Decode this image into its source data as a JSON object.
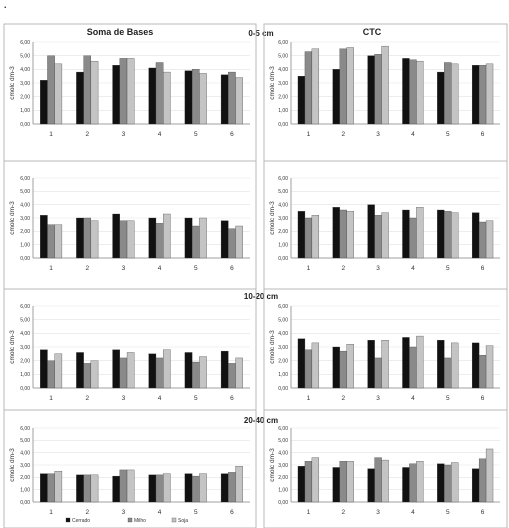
{
  "figure": {
    "col_titles": [
      "Soma de Bases",
      "CTC"
    ],
    "depth_labels": [
      "0-5 cm",
      "",
      "10-20 cm",
      "20-40 cm"
    ],
    "ylabel": "cmolc dm-3",
    "yticks": [
      "0,00",
      "1,00",
      "2,00",
      "3,00",
      "4,00",
      "5,00",
      "6,00"
    ],
    "legend": [
      "Cerrado",
      "Milho",
      "Soja"
    ],
    "dot_mark": "."
  },
  "chart_data": [
    {
      "type": "bar",
      "panel": "Soma de Bases 0-5 cm",
      "categories": [
        "1",
        "2",
        "3",
        "4",
        "5",
        "6"
      ],
      "ylim": [
        0,
        6
      ],
      "series": [
        {
          "values": [
            3.2,
            3.8,
            4.3,
            4.1,
            3.9,
            3.6
          ]
        },
        {
          "values": [
            5.0,
            5.0,
            4.8,
            4.5,
            4.0,
            3.8
          ]
        },
        {
          "values": [
            4.4,
            4.6,
            4.8,
            3.8,
            3.7,
            3.4
          ]
        }
      ]
    },
    {
      "type": "bar",
      "panel": "CTC 0-5 cm",
      "categories": [
        "1",
        "2",
        "3",
        "4",
        "5",
        "6"
      ],
      "ylim": [
        0,
        6
      ],
      "series": [
        {
          "values": [
            3.5,
            4.0,
            5.0,
            4.8,
            3.8,
            4.3
          ]
        },
        {
          "values": [
            5.3,
            5.5,
            5.1,
            4.7,
            4.5,
            4.3
          ]
        },
        {
          "values": [
            5.5,
            5.6,
            5.7,
            4.6,
            4.4,
            4.4
          ]
        }
      ]
    },
    {
      "type": "bar",
      "panel": "Soma de Bases",
      "categories": [
        "1",
        "2",
        "3",
        "4",
        "5",
        "6"
      ],
      "ylim": [
        0,
        6
      ],
      "series": [
        {
          "values": [
            3.2,
            3.0,
            3.3,
            3.0,
            3.0,
            2.8
          ]
        },
        {
          "values": [
            2.5,
            3.0,
            2.8,
            2.6,
            2.4,
            2.2
          ]
        },
        {
          "values": [
            2.5,
            2.8,
            2.8,
            3.3,
            3.0,
            2.4
          ]
        }
      ]
    },
    {
      "type": "bar",
      "panel": "CTC",
      "categories": [
        "1",
        "2",
        "3",
        "4",
        "5",
        "6"
      ],
      "ylim": [
        0,
        6
      ],
      "series": [
        {
          "values": [
            3.5,
            3.8,
            4.0,
            3.6,
            3.6,
            3.4
          ]
        },
        {
          "values": [
            3.0,
            3.6,
            3.2,
            3.0,
            3.5,
            2.7
          ]
        },
        {
          "values": [
            3.2,
            3.5,
            3.4,
            3.8,
            3.4,
            2.8
          ]
        }
      ]
    },
    {
      "type": "bar",
      "panel": "Soma de Bases 10-20 cm",
      "categories": [
        "1",
        "2",
        "3",
        "4",
        "5",
        "6"
      ],
      "ylim": [
        0,
        6
      ],
      "series": [
        {
          "values": [
            2.8,
            2.6,
            2.8,
            2.5,
            2.6,
            2.7
          ]
        },
        {
          "values": [
            2.0,
            1.8,
            2.2,
            2.2,
            1.9,
            1.8
          ]
        },
        {
          "values": [
            2.5,
            2.0,
            2.6,
            2.8,
            2.3,
            2.2
          ]
        }
      ]
    },
    {
      "type": "bar",
      "panel": "CTC 10-20 cm",
      "categories": [
        "1",
        "2",
        "3",
        "4",
        "5",
        "6"
      ],
      "ylim": [
        0,
        6
      ],
      "series": [
        {
          "values": [
            3.6,
            3.0,
            3.5,
            3.7,
            3.5,
            3.3
          ]
        },
        {
          "values": [
            2.8,
            2.7,
            2.2,
            3.0,
            2.2,
            2.4
          ]
        },
        {
          "values": [
            3.3,
            3.2,
            3.5,
            3.8,
            3.3,
            3.1
          ]
        }
      ]
    },
    {
      "type": "bar",
      "panel": "Soma de Bases 20-40 cm",
      "categories": [
        "1",
        "2",
        "3",
        "4",
        "5",
        "6"
      ],
      "ylim": [
        0,
        6
      ],
      "series": [
        {
          "values": [
            2.3,
            2.2,
            2.1,
            2.2,
            2.3,
            2.3
          ]
        },
        {
          "values": [
            2.3,
            2.2,
            2.6,
            2.2,
            2.1,
            2.4
          ]
        },
        {
          "values": [
            2.5,
            2.2,
            2.6,
            2.3,
            2.3,
            2.9
          ]
        }
      ]
    },
    {
      "type": "bar",
      "panel": "CTC 20-40 cm",
      "categories": [
        "1",
        "2",
        "3",
        "4",
        "5",
        "6"
      ],
      "ylim": [
        0,
        6
      ],
      "series": [
        {
          "values": [
            2.9,
            2.8,
            2.7,
            2.8,
            3.1,
            2.7
          ]
        },
        {
          "values": [
            3.3,
            3.3,
            3.6,
            3.1,
            3.0,
            3.5
          ]
        },
        {
          "values": [
            3.6,
            3.3,
            3.4,
            3.3,
            3.2,
            4.3
          ]
        }
      ]
    }
  ]
}
